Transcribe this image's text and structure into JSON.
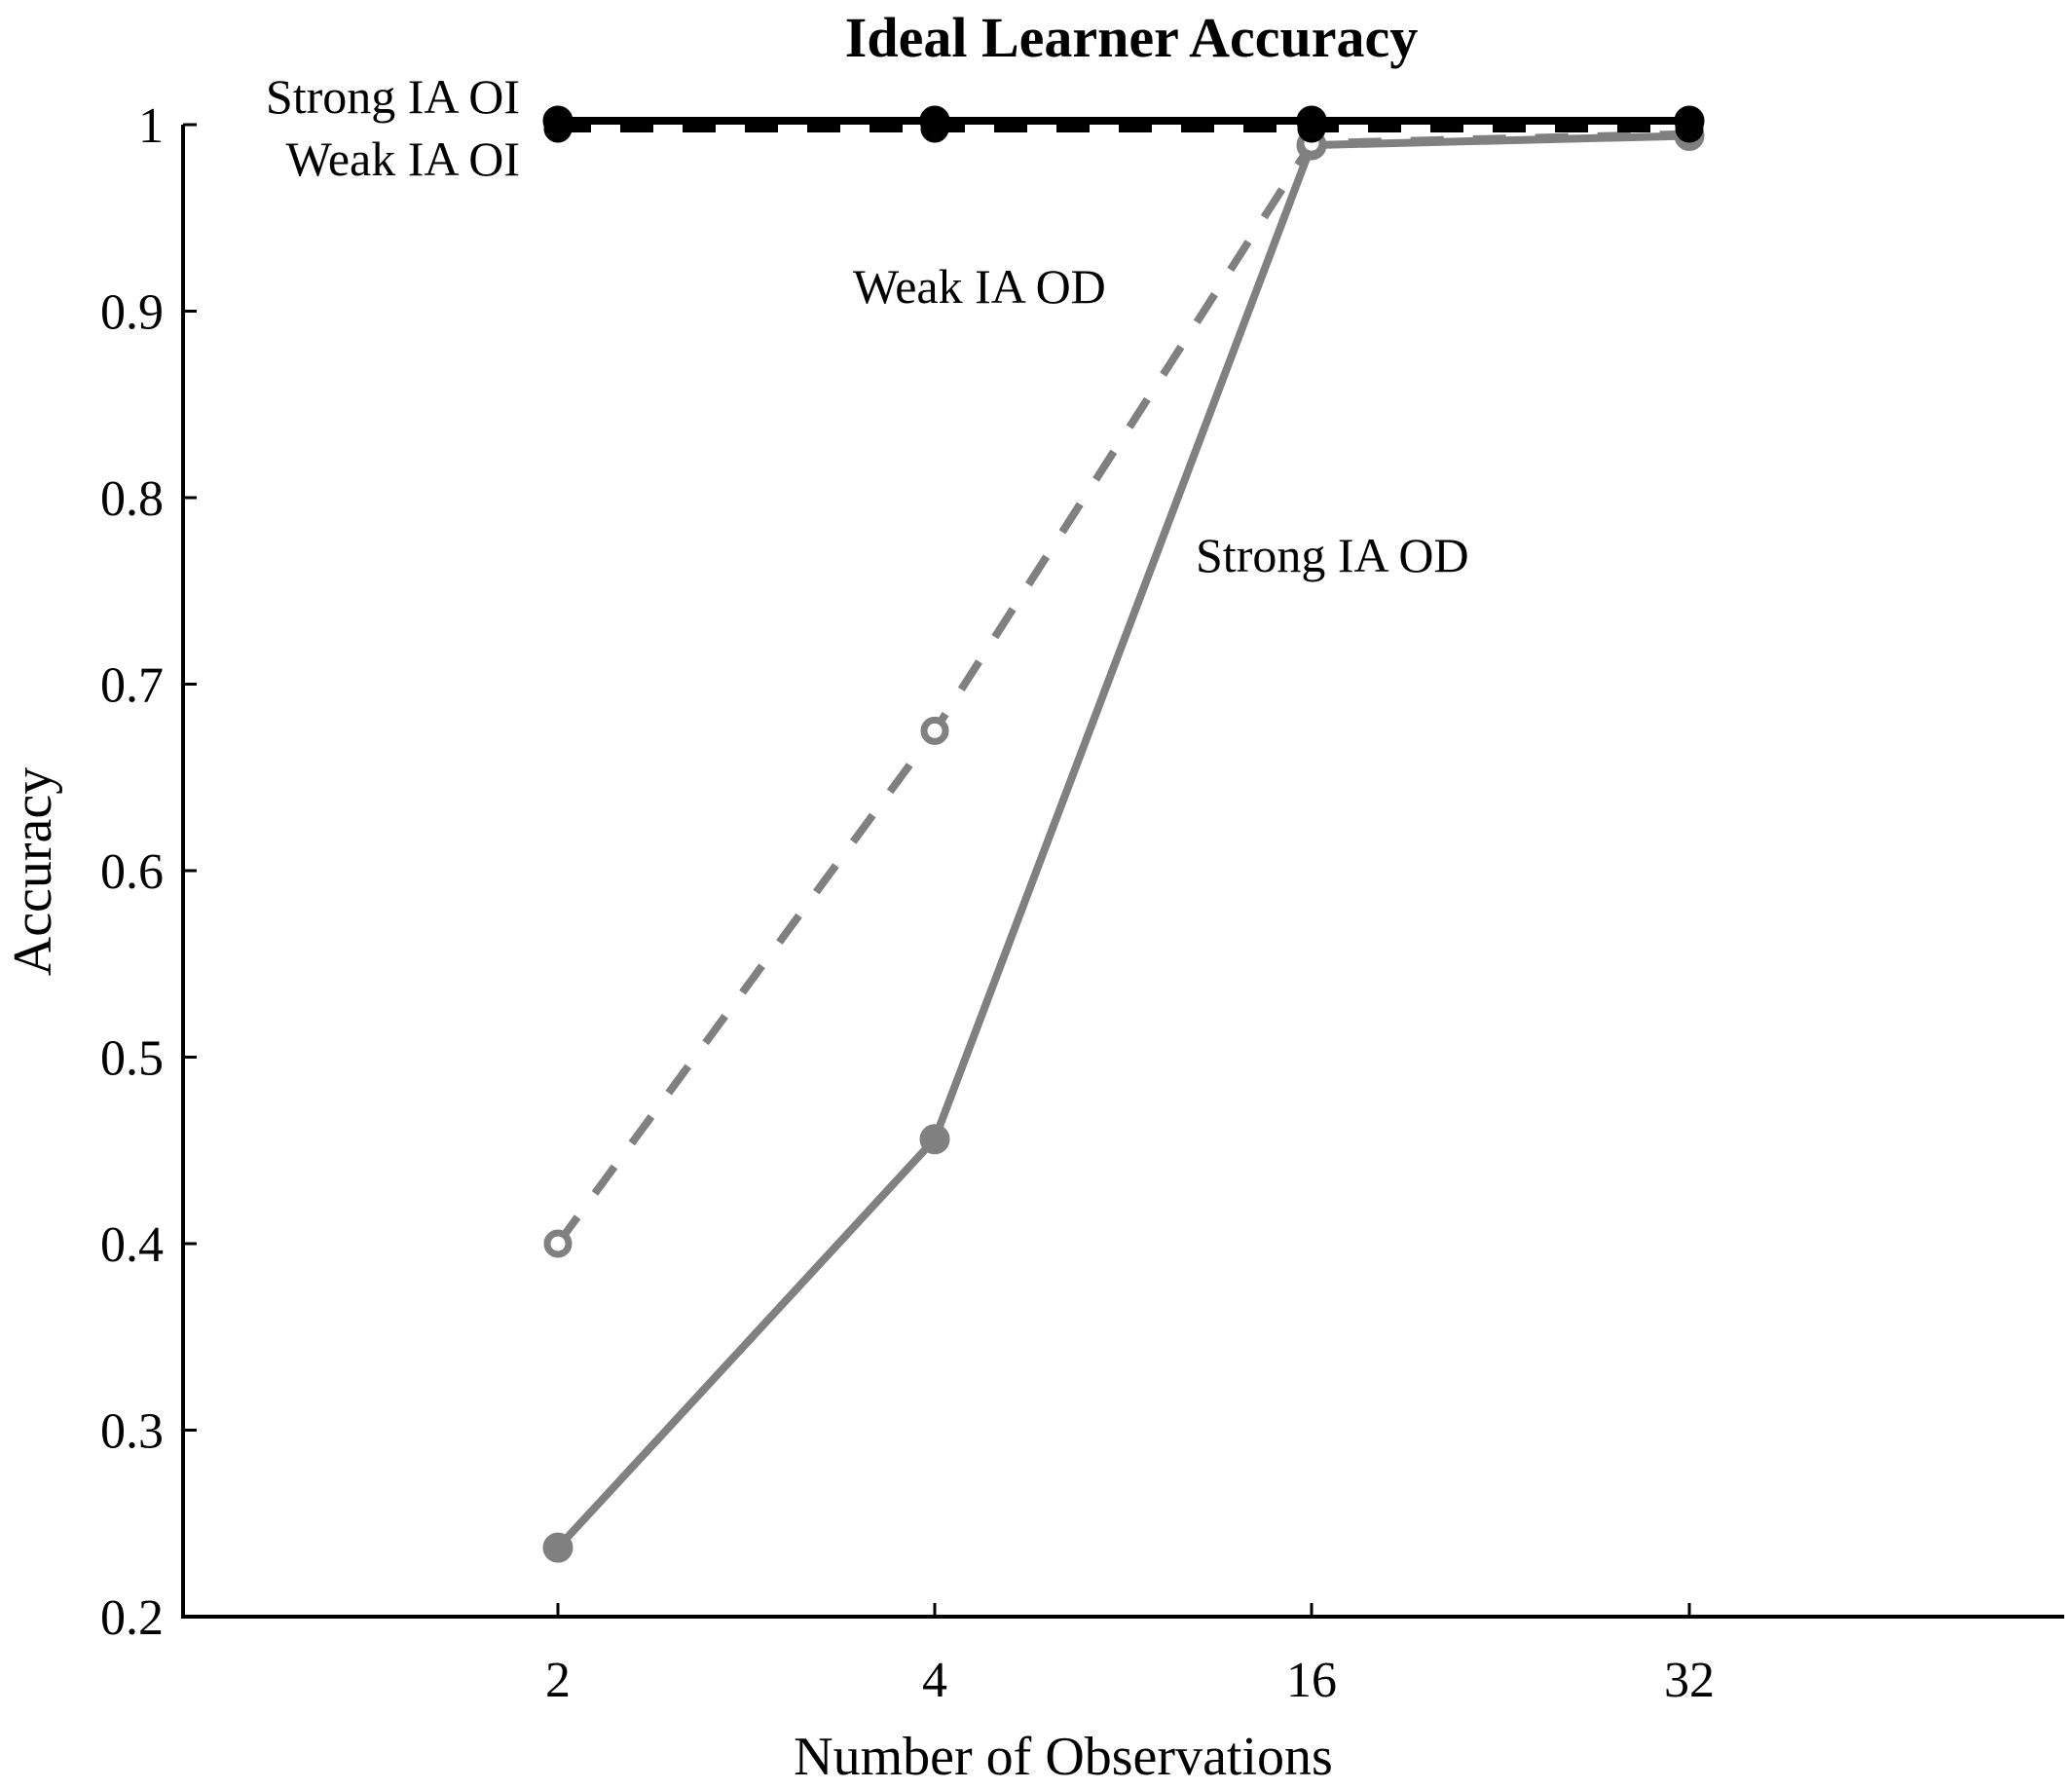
{
  "chart_data": {
    "type": "line",
    "title": "Ideal Learner Accuracy",
    "xlabel": "Number of Observations",
    "ylabel": "Accuracy",
    "categories": [
      "2",
      "4",
      "16",
      "32"
    ],
    "ylim": [
      0.2,
      1.0
    ],
    "yticks": [
      0.2,
      0.3,
      0.4,
      0.5,
      0.6,
      0.7,
      0.8,
      0.9,
      1
    ],
    "ytick_labels": [
      "0.2",
      "0.3",
      "0.4",
      "0.5",
      "0.6",
      "0.7",
      "0.8",
      "0.9",
      "1"
    ],
    "grid": false,
    "legend": "none (series labelled directly on the plot)",
    "series": [
      {
        "name": "Strong IA OI",
        "values": [
          1.0,
          1.0,
          1.0,
          1.0
        ],
        "color": "#000000",
        "style": "solid",
        "marker": "filled-circle"
      },
      {
        "name": "Weak IA OI",
        "values": [
          1.0,
          1.0,
          1.0,
          1.0
        ],
        "color": "#000000",
        "style": "dashed",
        "marker": "open-circle"
      },
      {
        "name": "Weak IA OD",
        "values": [
          0.4,
          0.675,
          0.99,
          0.995
        ],
        "color": "#808080",
        "style": "dashed",
        "marker": "open-circle"
      },
      {
        "name": "Strong IA OD",
        "values": [
          0.237,
          0.456,
          0.989,
          0.994
        ],
        "color": "#808080",
        "style": "solid",
        "marker": "filled-circle"
      }
    ]
  }
}
